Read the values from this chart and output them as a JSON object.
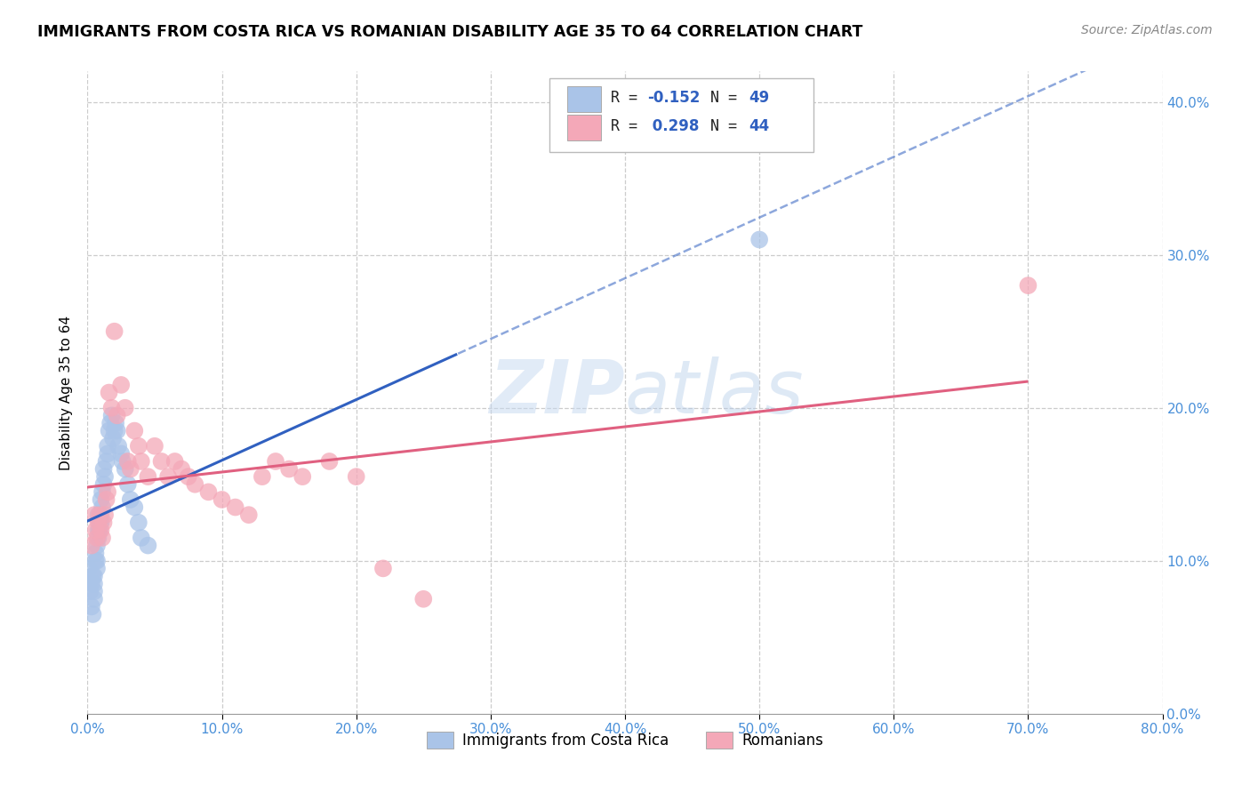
{
  "title": "IMMIGRANTS FROM COSTA RICA VS ROMANIAN DISABILITY AGE 35 TO 64 CORRELATION CHART",
  "source": "Source: ZipAtlas.com",
  "ylabel": "Disability Age 35 to 64",
  "legend_label1": "Immigrants from Costa Rica",
  "legend_label2": "Romanians",
  "r1": -0.152,
  "n1": 49,
  "r2": 0.298,
  "n2": 44,
  "color1": "#aac4e8",
  "color2": "#f4a8b8",
  "line1_color": "#3060c0",
  "line2_color": "#e06080",
  "xlim": [
    0.0,
    0.8
  ],
  "ylim": [
    0.0,
    0.42
  ],
  "costa_rica_x": [
    0.001,
    0.002,
    0.003,
    0.003,
    0.004,
    0.004,
    0.005,
    0.005,
    0.005,
    0.005,
    0.006,
    0.006,
    0.007,
    0.007,
    0.007,
    0.008,
    0.008,
    0.008,
    0.009,
    0.009,
    0.01,
    0.01,
    0.01,
    0.011,
    0.011,
    0.012,
    0.012,
    0.013,
    0.014,
    0.015,
    0.015,
    0.016,
    0.017,
    0.018,
    0.019,
    0.02,
    0.021,
    0.022,
    0.023,
    0.025,
    0.026,
    0.028,
    0.03,
    0.032,
    0.035,
    0.038,
    0.04,
    0.045,
    0.5
  ],
  "costa_rica_y": [
    0.095,
    0.08,
    0.07,
    0.085,
    0.09,
    0.065,
    0.075,
    0.08,
    0.085,
    0.09,
    0.1,
    0.105,
    0.095,
    0.1,
    0.11,
    0.12,
    0.13,
    0.115,
    0.125,
    0.12,
    0.125,
    0.13,
    0.14,
    0.135,
    0.145,
    0.15,
    0.16,
    0.155,
    0.165,
    0.17,
    0.175,
    0.185,
    0.19,
    0.195,
    0.18,
    0.185,
    0.19,
    0.185,
    0.175,
    0.17,
    0.165,
    0.16,
    0.15,
    0.14,
    0.135,
    0.125,
    0.115,
    0.11,
    0.31
  ],
  "romanians_x": [
    0.003,
    0.005,
    0.006,
    0.007,
    0.008,
    0.009,
    0.01,
    0.011,
    0.012,
    0.013,
    0.014,
    0.015,
    0.016,
    0.018,
    0.02,
    0.022,
    0.025,
    0.028,
    0.03,
    0.032,
    0.035,
    0.038,
    0.04,
    0.045,
    0.05,
    0.055,
    0.06,
    0.065,
    0.07,
    0.075,
    0.08,
    0.09,
    0.1,
    0.11,
    0.12,
    0.13,
    0.14,
    0.15,
    0.16,
    0.18,
    0.2,
    0.22,
    0.25,
    0.7
  ],
  "romanians_y": [
    0.11,
    0.13,
    0.12,
    0.115,
    0.125,
    0.13,
    0.12,
    0.115,
    0.125,
    0.13,
    0.14,
    0.145,
    0.21,
    0.2,
    0.25,
    0.195,
    0.215,
    0.2,
    0.165,
    0.16,
    0.185,
    0.175,
    0.165,
    0.155,
    0.175,
    0.165,
    0.155,
    0.165,
    0.16,
    0.155,
    0.15,
    0.145,
    0.14,
    0.135,
    0.13,
    0.155,
    0.165,
    0.16,
    0.155,
    0.165,
    0.155,
    0.095,
    0.075,
    0.28
  ]
}
